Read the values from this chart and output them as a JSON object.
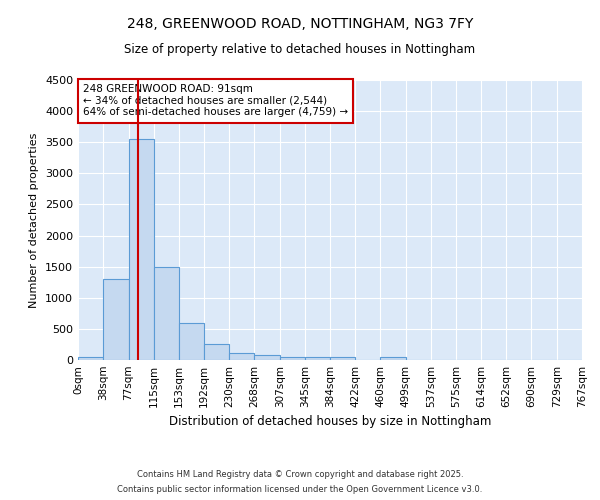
{
  "title1": "248, GREENWOOD ROAD, NOTTINGHAM, NG3 7FY",
  "title2": "Size of property relative to detached houses in Nottingham",
  "xlabel": "Distribution of detached houses by size in Nottingham",
  "ylabel": "Number of detached properties",
  "bin_edges": [
    0,
    38,
    77,
    115,
    153,
    192,
    230,
    268,
    307,
    345,
    384,
    422,
    460,
    499,
    537,
    575,
    614,
    652,
    690,
    729,
    767
  ],
  "bar_heights": [
    50,
    1300,
    3550,
    1500,
    600,
    250,
    120,
    80,
    50,
    50,
    50,
    0,
    50,
    0,
    0,
    0,
    0,
    0,
    0,
    0
  ],
  "bar_color": "#c5d9f0",
  "bar_edgecolor": "#5b9bd5",
  "plot_bg_color": "#dce9f8",
  "fig_bg_color": "#ffffff",
  "grid_color": "#ffffff",
  "red_line_x": 91,
  "annotation_title": "248 GREENWOOD ROAD: 91sqm",
  "annotation_line1": "← 34% of detached houses are smaller (2,544)",
  "annotation_line2": "64% of semi-detached houses are larger (4,759) →",
  "annotation_box_color": "#ffffff",
  "annotation_border_color": "#cc0000",
  "red_line_color": "#cc0000",
  "ylim": [
    0,
    4500
  ],
  "yticks": [
    0,
    500,
    1000,
    1500,
    2000,
    2500,
    3000,
    3500,
    4000,
    4500
  ],
  "footer1": "Contains HM Land Registry data © Crown copyright and database right 2025.",
  "footer2": "Contains public sector information licensed under the Open Government Licence v3.0."
}
